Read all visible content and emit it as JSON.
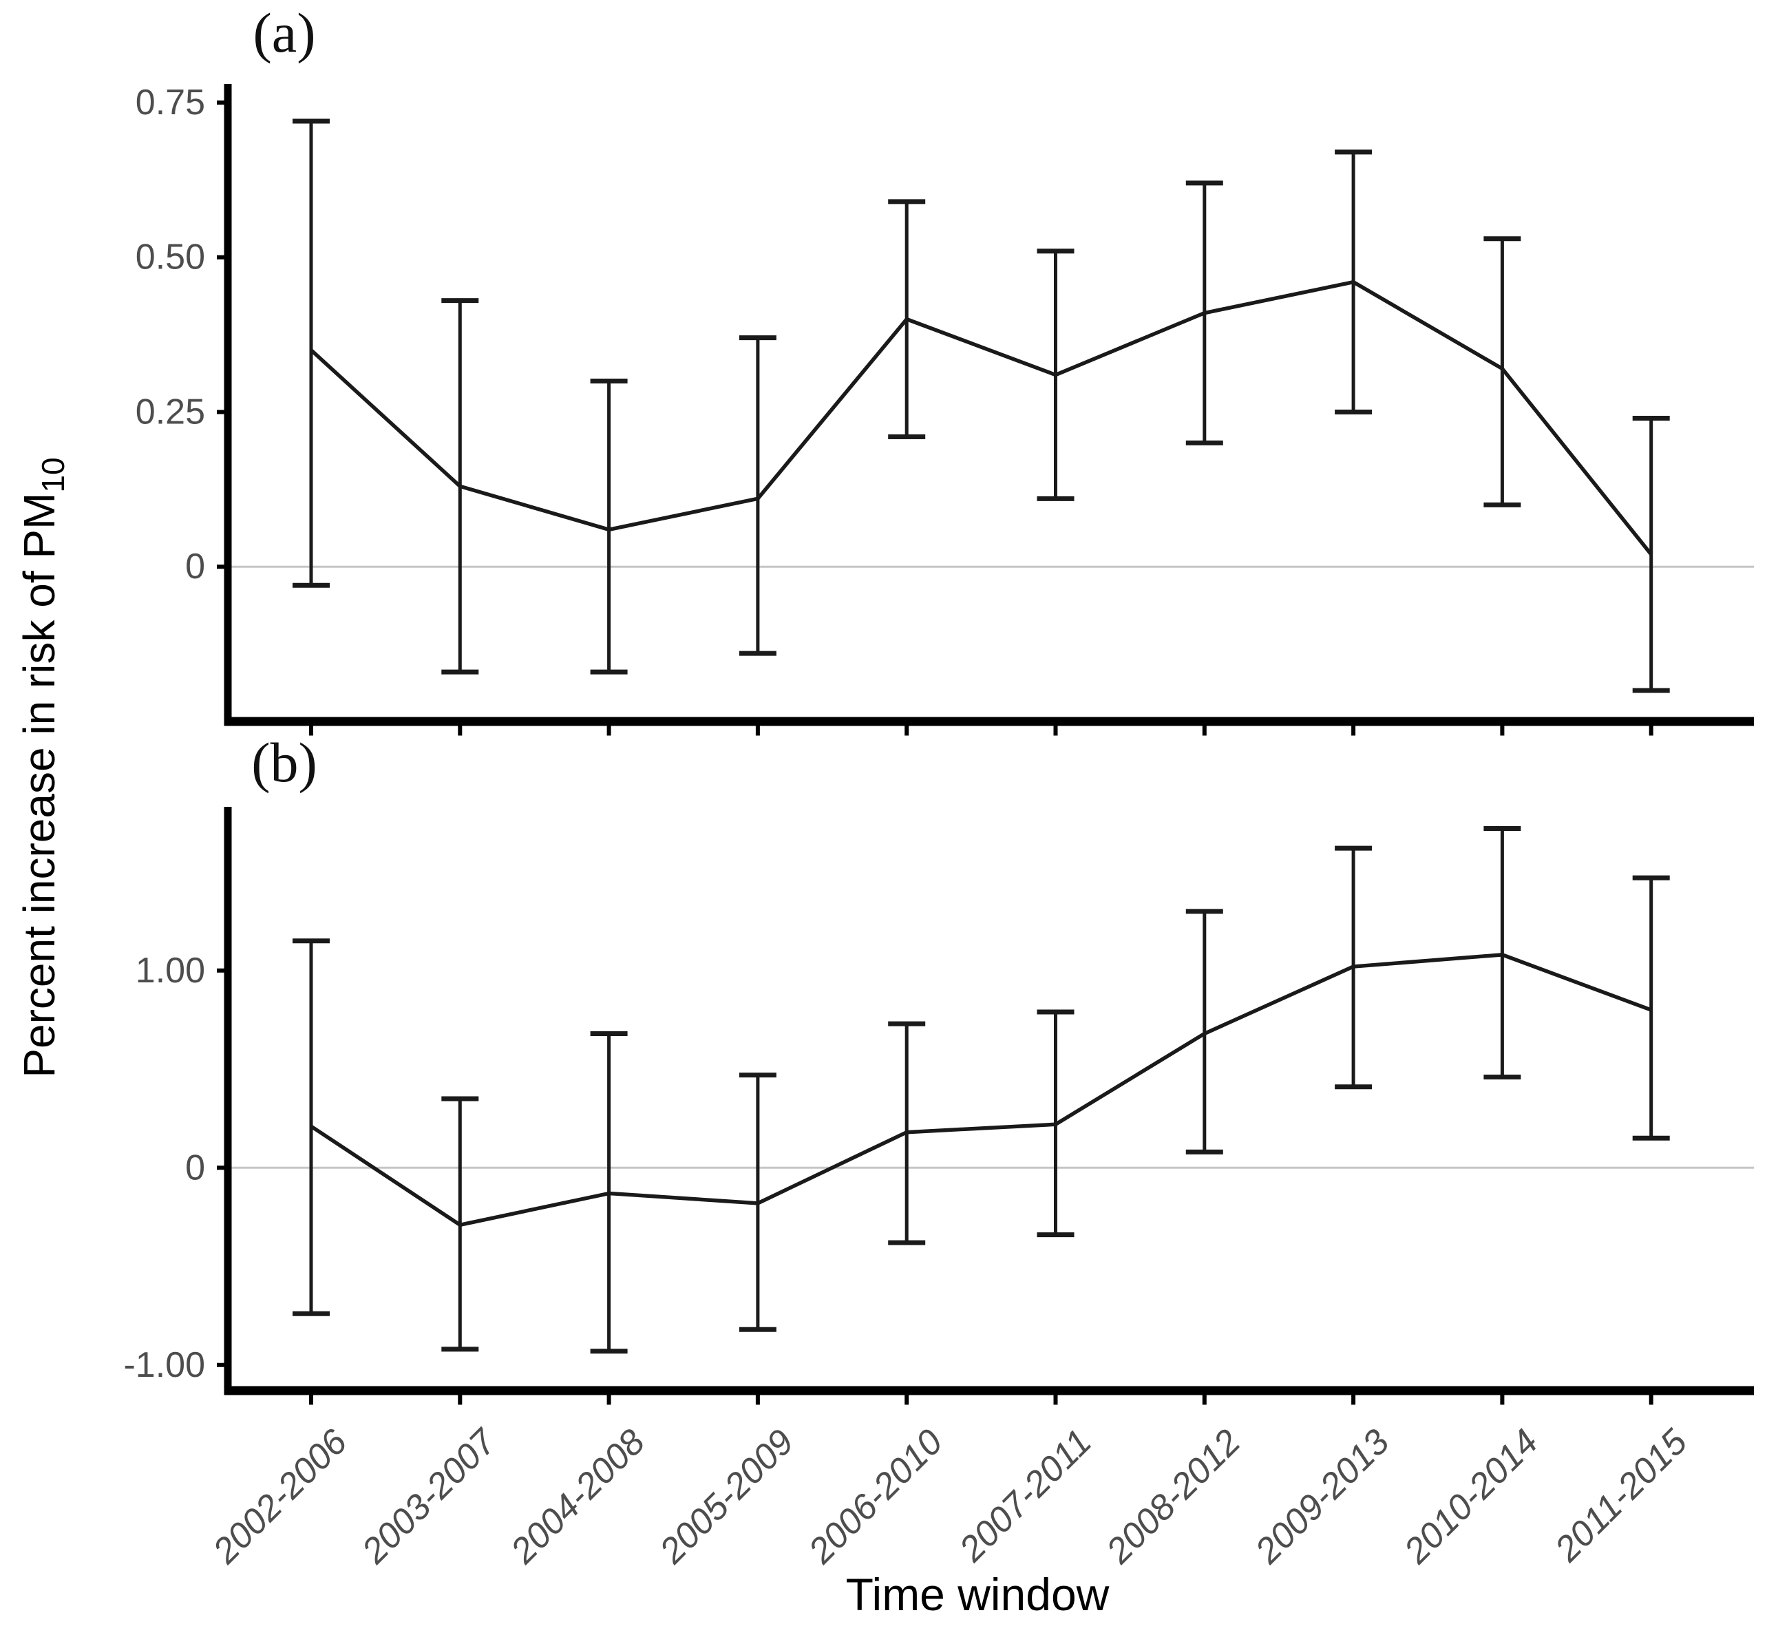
{
  "figure": {
    "panel_a_label": "(a)",
    "panel_b_label": "(b)",
    "x_axis_label": "Time window",
    "y_axis_label": "Percent increase in risk of PM",
    "y_axis_label_subscript": "10"
  },
  "colors": {
    "series_line": "#1a1a1a",
    "error_bar": "#1a1a1a",
    "axis_line": "#000000",
    "tick_label": "#4d4d4d",
    "zero_gridline": "#c6c6c6",
    "background": "#ffffff"
  },
  "chart_data": [
    {
      "id": "a",
      "type": "line",
      "panel_label": "(a)",
      "error_bars": true,
      "zero_line": true,
      "grid": false,
      "legend": false,
      "ylabel": "Percent increase in risk of PM10",
      "categories": [
        "2002-2006",
        "2003-2007",
        "2004-2008",
        "2005-2009",
        "2006-2010",
        "2007-2011",
        "2008-2012",
        "2009-2013",
        "2010-2014",
        "2011-2015"
      ],
      "x_tick_labels_shown": false,
      "yticks": [
        0.75,
        0.5,
        0.25,
        0
      ],
      "ytick_labels": [
        "0.75",
        "0.50",
        "0.25",
        "0"
      ],
      "ylim": [
        -0.25,
        0.78
      ],
      "series": [
        {
          "name": "Percent increase in risk of PM10 per time window",
          "values": [
            0.35,
            0.13,
            0.06,
            0.11,
            0.4,
            0.31,
            0.41,
            0.46,
            0.32,
            0.02
          ],
          "ci_low": [
            -0.03,
            -0.17,
            -0.17,
            -0.14,
            0.21,
            0.11,
            0.2,
            0.25,
            0.1,
            -0.2
          ],
          "ci_high": [
            0.72,
            0.43,
            0.3,
            0.37,
            0.59,
            0.51,
            0.62,
            0.67,
            0.53,
            0.24
          ]
        }
      ]
    },
    {
      "id": "b",
      "type": "line",
      "panel_label": "(b)",
      "error_bars": true,
      "zero_line": true,
      "grid": false,
      "legend": false,
      "ylabel": "Percent increase in risk of PM10",
      "xlabel": "Time window",
      "categories": [
        "2002-2006",
        "2003-2007",
        "2004-2008",
        "2005-2009",
        "2006-2010",
        "2007-2011",
        "2008-2012",
        "2009-2013",
        "2010-2014",
        "2011-2015"
      ],
      "x_tick_labels_shown": true,
      "yticks": [
        1.0,
        0,
        -1.0
      ],
      "ytick_labels": [
        "1.00",
        "0",
        "-1.00"
      ],
      "ylim": [
        -1.13,
        1.83
      ],
      "series": [
        {
          "name": "Percent increase in risk of PM10 per time window",
          "values": [
            0.21,
            -0.29,
            -0.13,
            -0.18,
            0.18,
            0.22,
            0.68,
            1.02,
            1.08,
            0.8
          ],
          "ci_low": [
            -0.74,
            -0.92,
            -0.93,
            -0.82,
            -0.38,
            -0.34,
            0.08,
            0.41,
            0.46,
            0.15
          ],
          "ci_high": [
            1.15,
            0.35,
            0.68,
            0.47,
            0.73,
            0.79,
            1.3,
            1.62,
            1.72,
            1.47
          ]
        }
      ]
    }
  ]
}
